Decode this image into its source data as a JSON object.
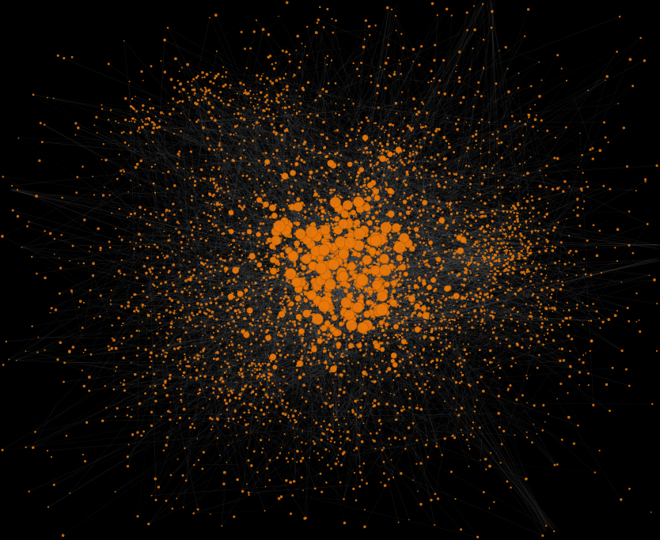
{
  "graph": {
    "type": "force-directed network",
    "background_color": "#000000",
    "node_color": "#e8780c",
    "node_stroke_color": "#b35800",
    "edge_color": "#8a8a8a",
    "labels_visible": false
  }
}
